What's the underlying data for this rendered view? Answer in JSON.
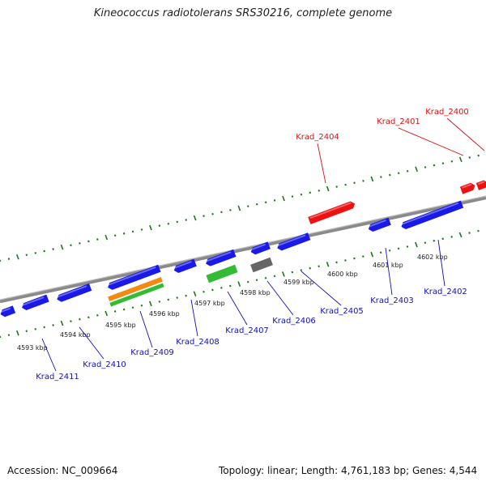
{
  "title": "Kineococcus radiotolerans SRS30216, complete genome",
  "footer": {
    "accession": "Accession: NC_009664",
    "info": "Topology: linear; Length: 4,761,183 bp; Genes: 4,544"
  },
  "colors": {
    "forward_gene": "#ee1111",
    "reverse_gene": "#1a1ae8",
    "axis": "#8a8a8a",
    "tick": "#1a7a1a",
    "highlight_orange": "#f28a10",
    "highlight_green": "#33bb33",
    "grey_feature": "#666666",
    "label_forward": "#dd1111",
    "label_reverse": "#1111bb"
  },
  "kbp_labels": [
    "4593 kbp",
    "4594 kbp",
    "4595 kbp",
    "4596 kbp",
    "4597 kbp",
    "4598 kbp",
    "4599 kbp",
    "4600 kbp",
    "4601 kbp",
    "4602 kbp"
  ],
  "forward_genes": [
    {
      "label": "Krad_2404",
      "kind": "forward"
    },
    {
      "label": "Krad_2401",
      "kind": "forward"
    },
    {
      "label": "Krad_2400",
      "kind": "forward"
    }
  ],
  "reverse_genes": [
    {
      "label": "Krad_2411",
      "kind": "reverse"
    },
    {
      "label": "Krad_2410",
      "kind": "reverse"
    },
    {
      "label": "Krad_2409",
      "kind": "reverse"
    },
    {
      "label": "Krad_2408",
      "kind": "reverse"
    },
    {
      "label": "Krad_2407",
      "kind": "reverse"
    },
    {
      "label": "Krad_2406",
      "kind": "reverse"
    },
    {
      "label": "Krad_2405",
      "kind": "reverse"
    },
    {
      "label": "Krad_2403",
      "kind": "reverse"
    },
    {
      "label": "Krad_2402",
      "kind": "reverse"
    }
  ]
}
